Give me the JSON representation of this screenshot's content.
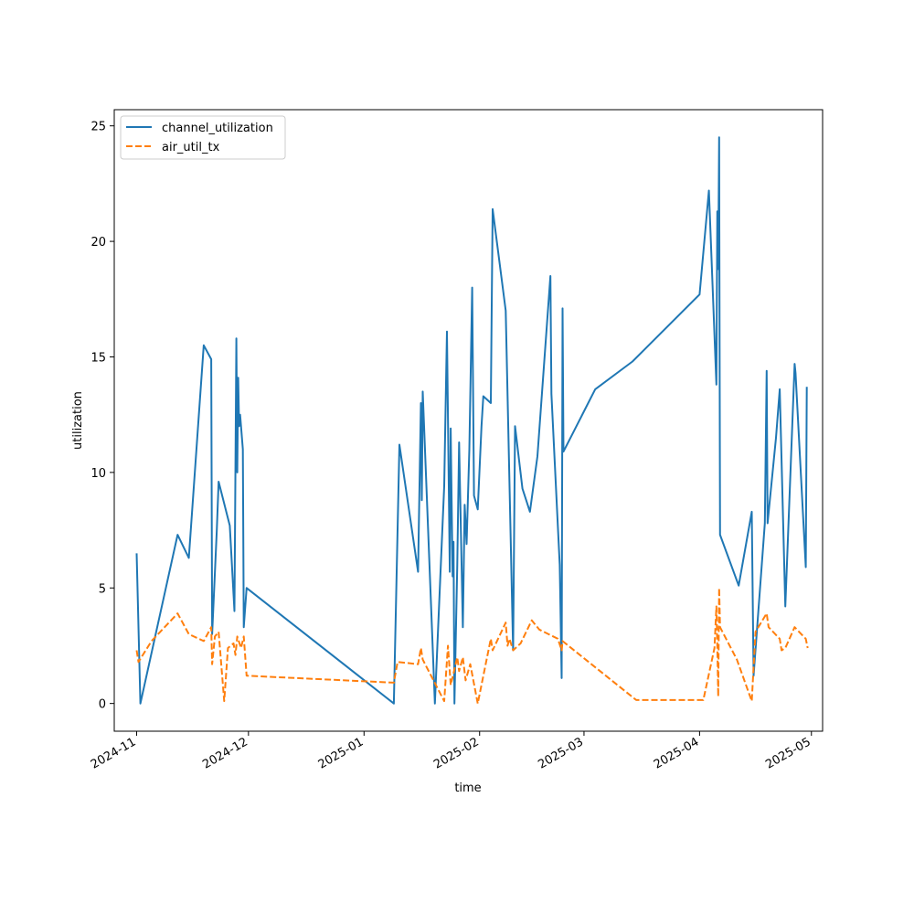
{
  "chart_data": {
    "type": "line",
    "title": "",
    "xlabel": "time",
    "ylabel": "utilization",
    "xlim": [
      "2024-10-26",
      "2025-05-04"
    ],
    "ylim": [
      -1.2,
      25.7
    ],
    "x_ticks": [
      {
        "date": "2024-11-01",
        "label": "2024-11"
      },
      {
        "date": "2024-12-01",
        "label": "2024-12"
      },
      {
        "date": "2025-01-01",
        "label": "2025-01"
      },
      {
        "date": "2025-02-01",
        "label": "2025-02"
      },
      {
        "date": "2025-03-01",
        "label": "2025-03"
      },
      {
        "date": "2025-04-01",
        "label": "2025-04"
      },
      {
        "date": "2025-05-01",
        "label": "2025-05"
      }
    ],
    "y_ticks": [
      0,
      5,
      10,
      15,
      20,
      25
    ],
    "grid": false,
    "legend_position": "upper-left",
    "series": [
      {
        "name": "channel_utilization",
        "color": "#1f77b4",
        "dash": "solid",
        "points": [
          [
            "2024-11-01T00:00",
            6.5
          ],
          [
            "2024-11-02T00:00",
            0.0
          ],
          [
            "2024-11-12T00:00",
            7.3
          ],
          [
            "2024-11-15T00:00",
            6.3
          ],
          [
            "2024-11-19T00:00",
            15.5
          ],
          [
            "2024-11-21T00:00",
            14.9
          ],
          [
            "2024-11-21T06:00",
            3.0
          ],
          [
            "2024-11-22T12:00",
            7.5
          ],
          [
            "2024-11-23T00:00",
            9.6
          ],
          [
            "2024-11-26T00:00",
            7.7
          ],
          [
            "2024-11-27T06:00",
            4.0
          ],
          [
            "2024-11-27T18:00",
            15.8
          ],
          [
            "2024-11-28T00:00",
            10.0
          ],
          [
            "2024-11-28T06:00",
            14.1
          ],
          [
            "2024-11-28T12:00",
            12.0
          ],
          [
            "2024-11-28T18:00",
            12.5
          ],
          [
            "2024-11-29T12:00",
            11.0
          ],
          [
            "2024-11-29T18:00",
            3.3
          ],
          [
            "2024-11-30T12:00",
            5.0
          ],
          [
            "2025-01-09T00:00",
            0.0
          ],
          [
            "2025-01-10T12:00",
            11.2
          ],
          [
            "2025-01-15T12:00",
            5.7
          ],
          [
            "2025-01-16T06:00",
            13.0
          ],
          [
            "2025-01-16T12:00",
            8.8
          ],
          [
            "2025-01-16T18:00",
            13.5
          ],
          [
            "2025-01-20T00:00",
            0.0
          ],
          [
            "2025-01-22T12:00",
            9.4
          ],
          [
            "2025-01-23T06:00",
            16.1
          ],
          [
            "2025-01-24T00:00",
            5.7
          ],
          [
            "2025-01-24T06:00",
            11.9
          ],
          [
            "2025-01-24T18:00",
            5.5
          ],
          [
            "2025-01-25T00:00",
            7.0
          ],
          [
            "2025-01-25T06:00",
            0.0
          ],
          [
            "2025-01-26T00:00",
            6.0
          ],
          [
            "2025-01-26T12:00",
            11.3
          ],
          [
            "2025-01-27T12:00",
            3.3
          ],
          [
            "2025-01-28T00:00",
            8.6
          ],
          [
            "2025-01-28T12:00",
            6.9
          ],
          [
            "2025-01-29T06:00",
            11.0
          ],
          [
            "2025-01-30T00:00",
            18.0
          ],
          [
            "2025-01-30T12:00",
            9.0
          ],
          [
            "2025-01-31T12:00",
            8.4
          ],
          [
            "2025-02-01T12:00",
            12.0
          ],
          [
            "2025-02-02T00:00",
            13.3
          ],
          [
            "2025-02-04T00:00",
            13.0
          ],
          [
            "2025-02-04T12:00",
            21.4
          ],
          [
            "2025-02-08T00:00",
            17.0
          ],
          [
            "2025-02-10T00:00",
            2.3
          ],
          [
            "2025-02-10T12:00",
            12.0
          ],
          [
            "2025-02-12T12:00",
            9.3
          ],
          [
            "2025-02-14T12:00",
            8.3
          ],
          [
            "2025-02-16T12:00",
            10.7
          ],
          [
            "2025-02-20T00:00",
            18.5
          ],
          [
            "2025-02-20T06:00",
            13.4
          ],
          [
            "2025-02-22T12:00",
            6.0
          ],
          [
            "2025-02-23T00:00",
            1.1
          ],
          [
            "2025-02-23T06:00",
            17.1
          ],
          [
            "2025-02-23T12:00",
            10.9
          ],
          [
            "2025-03-04T00:00",
            13.6
          ],
          [
            "2025-03-14T00:00",
            14.8
          ],
          [
            "2025-04-01T00:00",
            17.7
          ],
          [
            "2025-04-03T12:00",
            22.2
          ],
          [
            "2025-04-05T12:00",
            13.8
          ],
          [
            "2025-04-05T18:00",
            21.3
          ],
          [
            "2025-04-06T00:00",
            18.8
          ],
          [
            "2025-04-06T06:00",
            24.5
          ],
          [
            "2025-04-06T12:00",
            7.3
          ],
          [
            "2025-04-11T12:00",
            5.1
          ],
          [
            "2025-04-15T00:00",
            8.3
          ],
          [
            "2025-04-15T12:00",
            1.2
          ],
          [
            "2025-04-18T12:00",
            7.8
          ],
          [
            "2025-04-19T00:00",
            14.4
          ],
          [
            "2025-04-19T06:00",
            7.8
          ],
          [
            "2025-04-21T12:00",
            11.5
          ],
          [
            "2025-04-22T12:00",
            13.6
          ],
          [
            "2025-04-24T00:00",
            4.2
          ],
          [
            "2025-04-26T12:00",
            14.7
          ],
          [
            "2025-04-26T18:00",
            14.3
          ],
          [
            "2025-04-29T12:00",
            5.9
          ],
          [
            "2025-04-29T18:00",
            13.7
          ]
        ]
      },
      {
        "name": "air_util_tx",
        "color": "#ff7f0e",
        "dash": "dashed",
        "points": [
          [
            "2024-11-01T00:00",
            2.3
          ],
          [
            "2024-11-01T12:00",
            1.8
          ],
          [
            "2024-11-05T00:00",
            2.7
          ],
          [
            "2024-11-12T00:00",
            3.9
          ],
          [
            "2024-11-15T00:00",
            3.0
          ],
          [
            "2024-11-19T00:00",
            2.7
          ],
          [
            "2024-11-21T00:00",
            3.3
          ],
          [
            "2024-11-21T06:00",
            1.7
          ],
          [
            "2024-11-22T00:00",
            2.9
          ],
          [
            "2024-11-23T00:00",
            3.1
          ],
          [
            "2024-11-24T12:00",
            0.1
          ],
          [
            "2024-11-25T12:00",
            2.4
          ],
          [
            "2024-11-27T00:00",
            2.6
          ],
          [
            "2024-11-27T12:00",
            2.1
          ],
          [
            "2024-11-28T00:00",
            2.9
          ],
          [
            "2024-11-29T00:00",
            2.4
          ],
          [
            "2024-11-29T18:00",
            2.9
          ],
          [
            "2024-11-30T12:00",
            1.2
          ],
          [
            "2025-01-09T00:00",
            0.9
          ],
          [
            "2025-01-10T00:00",
            1.8
          ],
          [
            "2025-01-15T12:00",
            1.7
          ],
          [
            "2025-01-16T06:00",
            2.4
          ],
          [
            "2025-01-16T18:00",
            1.9
          ],
          [
            "2025-01-22T12:00",
            0.1
          ],
          [
            "2025-01-23T12:00",
            2.5
          ],
          [
            "2025-01-24T06:00",
            0.8
          ],
          [
            "2025-01-25T00:00",
            1.3
          ],
          [
            "2025-01-26T00:00",
            2.0
          ],
          [
            "2025-01-26T12:00",
            1.4
          ],
          [
            "2025-01-27T12:00",
            2.0
          ],
          [
            "2025-01-28T06:00",
            1.0
          ],
          [
            "2025-01-29T12:00",
            1.7
          ],
          [
            "2025-01-31T12:00",
            0.0
          ],
          [
            "2025-02-03T00:00",
            2.0
          ],
          [
            "2025-02-04T00:00",
            2.8
          ],
          [
            "2025-02-04T12:00",
            2.3
          ],
          [
            "2025-02-08T00:00",
            3.5
          ],
          [
            "2025-02-08T12:00",
            2.5
          ],
          [
            "2025-02-09T00:00",
            2.8
          ],
          [
            "2025-02-10T00:00",
            2.3
          ],
          [
            "2025-02-12T00:00",
            2.6
          ],
          [
            "2025-02-15T00:00",
            3.6
          ],
          [
            "2025-02-17T00:00",
            3.2
          ],
          [
            "2025-02-22T00:00",
            2.8
          ],
          [
            "2025-02-23T00:00",
            2.3
          ],
          [
            "2025-02-23T06:00",
            2.7
          ],
          [
            "2025-03-15T00:00",
            0.15
          ],
          [
            "2025-04-02T00:00",
            0.15
          ],
          [
            "2025-04-05T00:00",
            2.4
          ],
          [
            "2025-04-05T12:00",
            4.2
          ],
          [
            "2025-04-05T18:00",
            2.5
          ],
          [
            "2025-04-06T00:00",
            0.3
          ],
          [
            "2025-04-06T06:00",
            5.0
          ],
          [
            "2025-04-06T12:00",
            3.3
          ],
          [
            "2025-04-11T00:00",
            1.9
          ],
          [
            "2025-04-15T00:00",
            0.1
          ],
          [
            "2025-04-16T00:00",
            3.1
          ],
          [
            "2025-04-19T00:00",
            3.9
          ],
          [
            "2025-04-19T12:00",
            3.3
          ],
          [
            "2025-04-22T12:00",
            2.8
          ],
          [
            "2025-04-23T00:00",
            2.3
          ],
          [
            "2025-04-24T00:00",
            2.4
          ],
          [
            "2025-04-26T12:00",
            3.3
          ],
          [
            "2025-04-29T12:00",
            2.8
          ],
          [
            "2025-04-30T00:00",
            2.4
          ]
        ]
      }
    ]
  }
}
